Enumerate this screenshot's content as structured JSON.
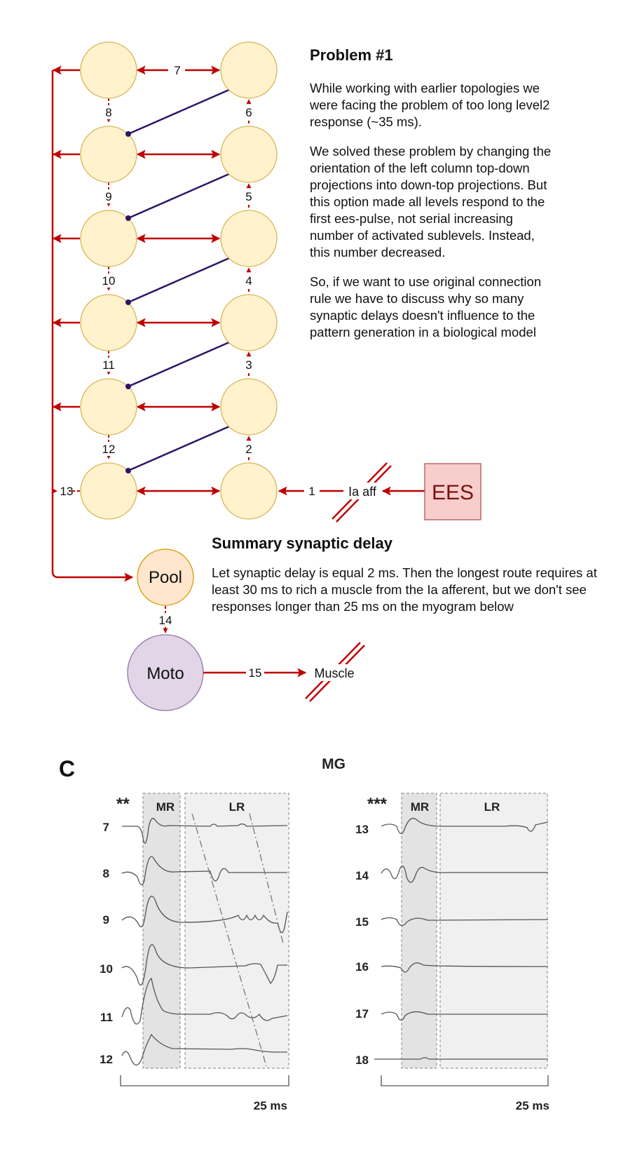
{
  "problem": {
    "title": "Problem #1",
    "paragraphs": [
      "While working with earlier topologies we were facing the problem of too long level2 response (~35 ms).",
      "We solved these problem by changing the orientation of the left column top-down projections into down-top projections. But this option made all levels respond to the first ees-pulse, not serial increasing number of activated sublevels. Instead, this number decreased.",
      "So, if we want to use original connection rule we have to discuss why so many synaptic delays doesn't influence to the pattern generation in a biological model"
    ]
  },
  "summary": {
    "title": "Summary synaptic delay",
    "text": "Let synaptic delay is equal 2 ms. Then the longest route requires at least 30 ms to rich a muscle from the Ia afferent, but we don't see responses longer than 25 ms on the myogram below"
  },
  "diagram": {
    "left_labels": [
      "8",
      "9",
      "10",
      "11",
      "12"
    ],
    "right_labels": [
      "6",
      "5",
      "4",
      "3",
      "2"
    ],
    "top_label": "7",
    "pool_out_label": "13",
    "ia_label": "1",
    "pool_moto_label": "14",
    "moto_muscle_label": "15",
    "ia_aff": "Ia aff",
    "ees": "EES",
    "pool": "Pool",
    "moto": "Moto",
    "muscle": "Muscle",
    "colors": {
      "node": "#fff2cc",
      "node_border": "#d6b656",
      "arrow": "#c00000",
      "inhib": "#2d1466",
      "pool": "#ffe6cc",
      "moto": "#e1d5e7",
      "ees_fill": "#f8cecc",
      "ees_border": "#b85450",
      "ees_text": "#7b1010"
    }
  },
  "myogram": {
    "panel_letter": "C",
    "muscle": "MG",
    "left": {
      "marker": "**",
      "rows": [
        "7",
        "8",
        "9",
        "10",
        "11",
        "12"
      ],
      "mr": "MR",
      "lr": "LR",
      "scale": "25 ms"
    },
    "right": {
      "marker": "***",
      "rows": [
        "13",
        "14",
        "15",
        "16",
        "17",
        "18"
      ],
      "mr": "MR",
      "lr": "LR",
      "scale": "25 ms"
    }
  }
}
